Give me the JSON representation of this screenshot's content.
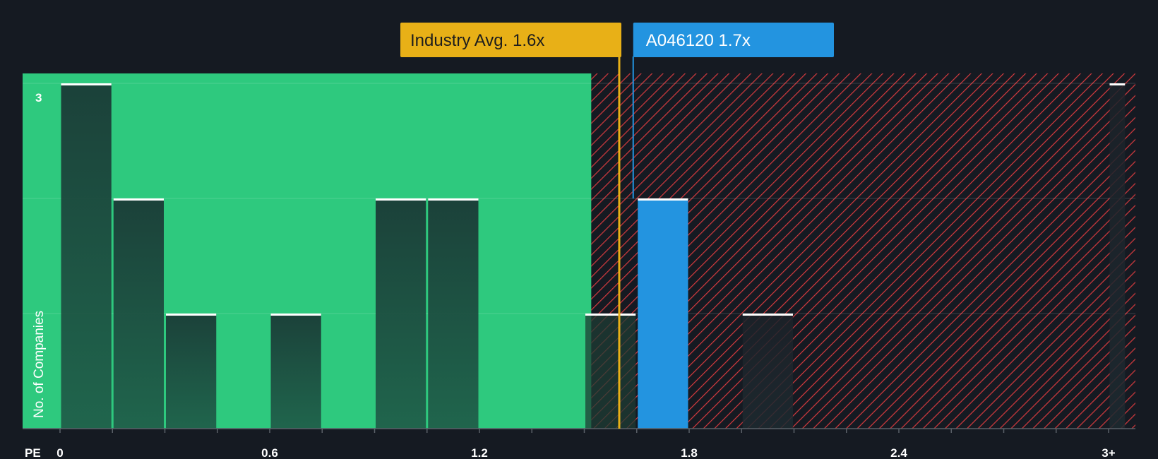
{
  "chart_data": {
    "type": "bar",
    "title": "",
    "xlabel": "PE",
    "ylabel": "No. of Companies",
    "xlim": [
      0,
      3.05
    ],
    "ylim": [
      0,
      3
    ],
    "x_ticks": [
      0,
      0.15,
      0.3,
      0.45,
      0.6,
      0.75,
      0.9,
      1.05,
      1.2,
      1.35,
      1.5,
      1.65,
      1.8,
      1.95,
      2.1,
      2.25,
      2.4,
      2.55,
      2.7,
      2.85,
      3.0
    ],
    "x_tick_labels": [
      {
        "value": 0,
        "label": "0"
      },
      {
        "value": 0.6,
        "label": "0.6"
      },
      {
        "value": 1.2,
        "label": "1.2"
      },
      {
        "value": 1.8,
        "label": "1.8"
      },
      {
        "value": 2.4,
        "label": "2.4"
      },
      {
        "value": 3.0,
        "label": "3+"
      }
    ],
    "y_tick_labels": [
      {
        "value": 3,
        "label": "3"
      }
    ],
    "bins": [
      {
        "start": 0.0,
        "end": 0.15,
        "count": 3
      },
      {
        "start": 0.15,
        "end": 0.3,
        "count": 2
      },
      {
        "start": 0.3,
        "end": 0.45,
        "count": 1
      },
      {
        "start": 0.6,
        "end": 0.75,
        "count": 1
      },
      {
        "start": 0.9,
        "end": 1.05,
        "count": 2
      },
      {
        "start": 1.05,
        "end": 1.2,
        "count": 2
      },
      {
        "start": 1.5,
        "end": 1.65,
        "count": 1
      },
      {
        "start": 1.65,
        "end": 1.8,
        "count": 2,
        "highlight": true
      },
      {
        "start": 1.95,
        "end": 2.1,
        "count": 1
      },
      {
        "start": 3.0,
        "end": 3.05,
        "count": 3
      }
    ],
    "fair_zone_end": 1.52,
    "industry_avg": {
      "value": 1.6,
      "label": "Industry Avg. 1.6x"
    },
    "company": {
      "value": 1.65,
      "label": "A046120 1.7x"
    },
    "colors": {
      "background": "#151a22",
      "fair_zone": "#2ec97e",
      "over_zone_line": "#d63a3e",
      "bar_dark": "#1e4a3c",
      "bar_highlight": "#2394e0",
      "industry_avg": "#e8b017",
      "bar_top": "#ffffff"
    }
  }
}
